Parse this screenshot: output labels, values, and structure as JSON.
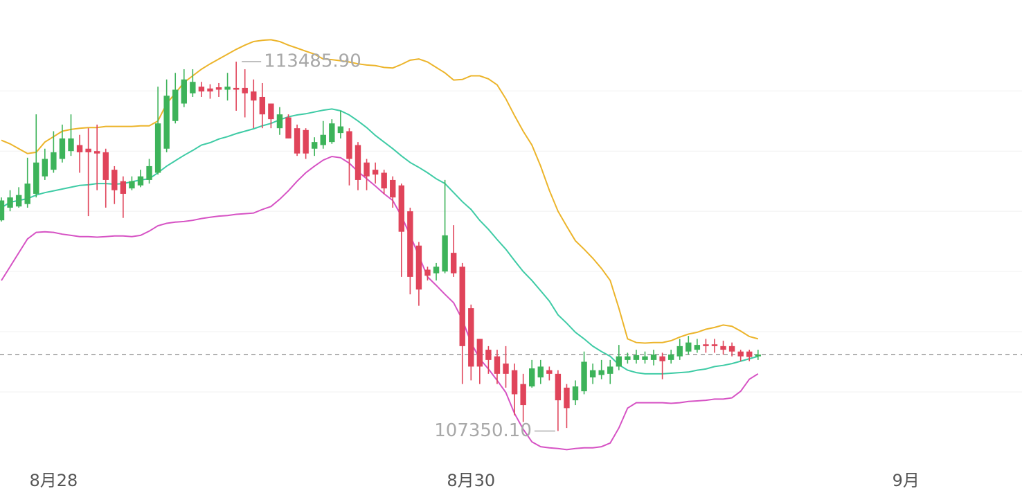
{
  "chart_data": {
    "type": "candlestick",
    "x": [
      0,
      1,
      2,
      3,
      4,
      5,
      6,
      7,
      8,
      9,
      10,
      11,
      12,
      13,
      14,
      15,
      16,
      17,
      18,
      19,
      20,
      21,
      22,
      23,
      24,
      25,
      26,
      27,
      28,
      29,
      30,
      31,
      32,
      33,
      34,
      35,
      36,
      37,
      38,
      39,
      40,
      41,
      42,
      43,
      44,
      45,
      46,
      47,
      48,
      49,
      50,
      51,
      52,
      53,
      54,
      55,
      56,
      57,
      58,
      59,
      60,
      61,
      62,
      63,
      64,
      65,
      66,
      67,
      68,
      69,
      70,
      71,
      72,
      73,
      74,
      75,
      76,
      77,
      78,
      79,
      80,
      81,
      82,
      83,
      84,
      85,
      86,
      87
    ],
    "open": [
      110850,
      111060,
      111080,
      111120,
      111290,
      111580,
      111690,
      111870,
      112000,
      112100,
      112040,
      112000,
      111980,
      111690,
      111500,
      111380,
      111430,
      111520,
      111640,
      112040,
      112500,
      112790,
      112960,
      113070,
      113040,
      113060,
      113020,
      113050,
      113050,
      112990,
      112900,
      112790,
      112380,
      112560,
      112380,
      112350,
      112040,
      112100,
      112150,
      112300,
      112330,
      112100,
      111810,
      111690,
      111640,
      111520,
      111430,
      111000,
      110430,
      110030,
      109970,
      110000,
      110310,
      110080,
      109390,
      108880,
      108700,
      108590,
      108470,
      108360,
      108130,
      108090,
      108240,
      108360,
      108300,
      108070,
      107860,
      108010,
      108240,
      108280,
      108300,
      108420,
      108530,
      108530,
      108530,
      108530,
      108590,
      108530,
      108590,
      108670,
      108700,
      108790,
      108790,
      108760,
      108760,
      108670,
      108670,
      108590
    ],
    "high": [
      111230,
      111350,
      111400,
      111890,
      112610,
      112040,
      112330,
      112440,
      112610,
      112270,
      112380,
      112440,
      112040,
      111750,
      111580,
      111580,
      111690,
      111870,
      113070,
      113190,
      113300,
      113360,
      113360,
      113150,
      113110,
      113130,
      113300,
      113485.9,
      113360,
      113190,
      113130,
      112790,
      112730,
      112610,
      112440,
      112380,
      112230,
      112500,
      112530,
      112670,
      112380,
      112150,
      111870,
      111810,
      111690,
      111580,
      111460,
      111060,
      110490,
      110080,
      110140,
      111520,
      110770,
      110140,
      109450,
      108880,
      108760,
      108700,
      108760,
      108470,
      108300,
      108530,
      108530,
      108420,
      108360,
      108130,
      108190,
      108670,
      108470,
      108530,
      108530,
      108780,
      108650,
      108700,
      108670,
      108700,
      108650,
      108700,
      108880,
      108930,
      108880,
      108880,
      108880,
      108850,
      108820,
      108700,
      108700,
      108700
    ],
    "low": [
      110830,
      111000,
      111060,
      111060,
      111230,
      111520,
      111640,
      111810,
      111920,
      111640,
      110920,
      111350,
      111060,
      111120,
      110890,
      111350,
      111400,
      111460,
      111610,
      111980,
      112460,
      112730,
      112900,
      112900,
      112870,
      112900,
      112840,
      112670,
      112560,
      112380,
      112380,
      112380,
      112270,
      112210,
      111920,
      111870,
      111920,
      112040,
      112120,
      112210,
      111430,
      111350,
      111350,
      111460,
      111290,
      111060,
      109910,
      109620,
      109430,
      109850,
      109850,
      109970,
      109910,
      108130,
      108190,
      108130,
      108300,
      108130,
      108070,
      107610,
      107500,
      108070,
      108130,
      108190,
      107350.1,
      107400,
      107780,
      107960,
      108130,
      108210,
      108130,
      108360,
      108470,
      108470,
      108470,
      108440,
      108210,
      108470,
      108530,
      108620,
      108650,
      108650,
      108650,
      108620,
      108590,
      108510,
      108510,
      108530
    ],
    "close": [
      111180,
      111230,
      111270,
      111460,
      111810,
      111870,
      111980,
      112210,
      112210,
      111980,
      111980,
      111960,
      111520,
      111350,
      111290,
      111500,
      111580,
      111750,
      112460,
      112920,
      113020,
      113190,
      113150,
      112990,
      112990,
      113020,
      113070,
      113020,
      112960,
      112840,
      112610,
      112530,
      112610,
      112210,
      111960,
      111960,
      112150,
      112270,
      112460,
      112410,
      111870,
      111520,
      111580,
      111610,
      111380,
      111230,
      110660,
      109910,
      109700,
      109930,
      110080,
      110600,
      109970,
      108760,
      108420,
      108420,
      108530,
      108300,
      108300,
      107960,
      107780,
      108390,
      108420,
      108300,
      107860,
      107730,
      108090,
      108500,
      108360,
      108360,
      108420,
      108590,
      108590,
      108610,
      108590,
      108620,
      108510,
      108620,
      108760,
      108820,
      108780,
      108760,
      108760,
      108700,
      108670,
      108590,
      108580,
      108620
    ],
    "up_color": "#3db35a",
    "down_color": "#e0445a",
    "lines": [
      {
        "color": "#ecb42a",
        "values": [
          112180,
          112120,
          112040,
          111960,
          111980,
          112150,
          112240,
          112330,
          112360,
          112380,
          112390,
          112390,
          112410,
          112410,
          112410,
          112410,
          112420,
          112420,
          112500,
          112790,
          112960,
          113140,
          113250,
          113360,
          113450,
          113530,
          113610,
          113690,
          113760,
          113820,
          113840,
          113850,
          113820,
          113760,
          113710,
          113660,
          113610,
          113530,
          113520,
          113500,
          113480,
          113450,
          113430,
          113420,
          113390,
          113380,
          113440,
          113510,
          113530,
          113480,
          113390,
          113300,
          113180,
          113190,
          113250,
          113250,
          113200,
          113100,
          112870,
          112590,
          112330,
          112100,
          111750,
          111350,
          111000,
          110750,
          110510,
          110370,
          110220,
          110050,
          109850,
          109390,
          108880,
          108820,
          108810,
          108820,
          108820,
          108850,
          108910,
          108960,
          108990,
          109040,
          109070,
          109110,
          109090,
          109010,
          108920,
          108880
        ]
      },
      {
        "color": "#3ecba5",
        "values": [
          111060,
          111150,
          111180,
          111210,
          111270,
          111310,
          111340,
          111370,
          111400,
          111430,
          111440,
          111460,
          111460,
          111450,
          111460,
          111490,
          111520,
          111540,
          111640,
          111750,
          111840,
          111930,
          112010,
          112100,
          112140,
          112200,
          112240,
          112290,
          112330,
          112370,
          112420,
          112460,
          112520,
          112570,
          112600,
          112620,
          112650,
          112680,
          112700,
          112670,
          112600,
          112500,
          112390,
          112260,
          112150,
          112040,
          111920,
          111810,
          111730,
          111640,
          111540,
          111460,
          111310,
          111160,
          111030,
          110850,
          110700,
          110530,
          110370,
          110180,
          110000,
          109850,
          109680,
          109510,
          109280,
          109140,
          108990,
          108880,
          108760,
          108670,
          108590,
          108450,
          108360,
          108320,
          108300,
          108300,
          108300,
          108310,
          108320,
          108330,
          108360,
          108380,
          108420,
          108440,
          108470,
          108510,
          108550,
          108590
        ]
      },
      {
        "color": "#d652c4",
        "values": [
          109850,
          110080,
          110310,
          110540,
          110650,
          110660,
          110650,
          110620,
          110600,
          110580,
          110580,
          110570,
          110580,
          110590,
          110590,
          110580,
          110600,
          110670,
          110760,
          110800,
          110820,
          110830,
          110850,
          110880,
          110900,
          110920,
          110930,
          110950,
          110960,
          110970,
          111030,
          111080,
          111200,
          111340,
          111500,
          111640,
          111750,
          111850,
          111910,
          111890,
          111800,
          111660,
          111540,
          111420,
          111290,
          111180,
          110920,
          110600,
          110260,
          109910,
          109770,
          109620,
          109480,
          109200,
          108820,
          108550,
          108380,
          108190,
          107990,
          107640,
          107380,
          107170,
          107090,
          107070,
          107060,
          107040,
          107060,
          107070,
          107070,
          107090,
          107150,
          107400,
          107730,
          107820,
          107820,
          107820,
          107820,
          107810,
          107820,
          107840,
          107850,
          107860,
          107880,
          107880,
          107900,
          108010,
          108210,
          108300
        ]
      }
    ],
    "annotations": [
      {
        "label": "113485.90",
        "value": 113485.9
      },
      {
        "label": "107350.10",
        "value": 107350.1
      }
    ],
    "xlim": [
      -0.16,
      117.35
    ],
    "xticks": [
      {
        "value": 6,
        "label": "8月28"
      },
      {
        "value": 54,
        "label": "8月30"
      },
      {
        "value": 104,
        "label": "9月"
      }
    ],
    "ylim": [
      106780,
      114510
    ],
    "yticks": [
      108000,
      109000,
      110000,
      111000,
      112000,
      113000
    ],
    "grid": true
  }
}
